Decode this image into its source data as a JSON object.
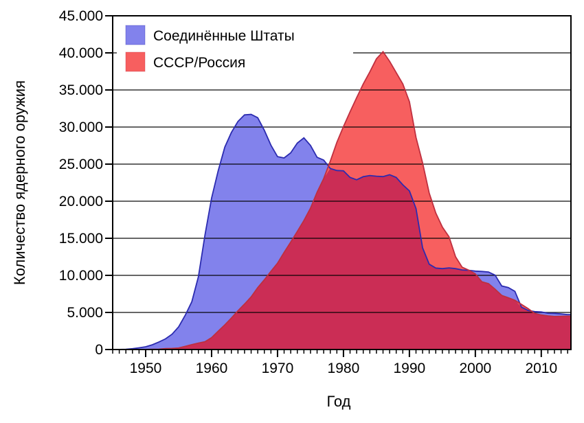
{
  "chart_data": {
    "type": "area",
    "title": "",
    "xlabel": "Год",
    "ylabel": "Количество ядерного оружия",
    "xlim": [
      1945,
      2014.5
    ],
    "ylim": [
      0,
      45000
    ],
    "grid": "horizontal",
    "legend_position": "top-left",
    "background_color": "#ffffff",
    "axis_color": "#000000",
    "gridline_color": "#000000",
    "overlap_fill": "#cb2d55",
    "x": [
      1945,
      1946,
      1947,
      1948,
      1949,
      1950,
      1951,
      1952,
      1953,
      1954,
      1955,
      1956,
      1957,
      1958,
      1959,
      1960,
      1961,
      1962,
      1963,
      1964,
      1965,
      1966,
      1967,
      1968,
      1969,
      1970,
      1971,
      1972,
      1973,
      1974,
      1975,
      1976,
      1977,
      1978,
      1979,
      1980,
      1981,
      1982,
      1983,
      1984,
      1985,
      1986,
      1987,
      1988,
      1989,
      1990,
      1991,
      1992,
      1993,
      1994,
      1995,
      1996,
      1997,
      1998,
      1999,
      2000,
      2001,
      2002,
      2003,
      2004,
      2005,
      2006,
      2007,
      2008,
      2009,
      2010,
      2011,
      2012,
      2013,
      2014
    ],
    "series": [
      {
        "name": "Соединённые Штаты",
        "fill": "#8282ec",
        "line": "#2b2bb0",
        "values": [
          6,
          11,
          32,
          110,
          235,
          369,
          640,
          1005,
          1436,
          2063,
          3057,
          4618,
          6444,
          9822,
          15468,
          20434,
          24111,
          27297,
          29249,
          30751,
          31642,
          31700,
          31255,
          29561,
          27552,
          26008,
          25830,
          26516,
          27835,
          28537,
          27519,
          25914,
          25542,
          24418,
          24138,
          24104,
          23208,
          22886,
          23305,
          23459,
          23368,
          23317,
          23575,
          23205,
          22217,
          21392,
          19008,
          13708,
          11511,
          10979,
          10904,
          11011,
          10903,
          10732,
          10685,
          10577,
          10526,
          10457,
          10027,
          8570,
          8360,
          7853,
          5709,
          5273,
          5113,
          5066,
          4897,
          4881,
          4804,
          4717
        ]
      },
      {
        "name": "СССР/Россия",
        "fill": "#f75f5f",
        "line": "#bf2f3f",
        "values": [
          0,
          0,
          0,
          0,
          1,
          5,
          25,
          50,
          120,
          150,
          200,
          426,
          660,
          869,
          1060,
          1605,
          2471,
          3322,
          4238,
          5221,
          6129,
          7089,
          8339,
          9399,
          10538,
          11643,
          13092,
          14478,
          15915,
          17385,
          19055,
          21205,
          23044,
          25393,
          27935,
          30062,
          32049,
          33952,
          35804,
          37431,
          39197,
          40159,
          38859,
          37333,
          35805,
          33417,
          28595,
          25155,
          21101,
          18399,
          16500,
          15200,
          12500,
          11100,
          10700,
          10200,
          9126,
          8875,
          8128,
          7297,
          6986,
          6643,
          6079,
          5518,
          4864,
          4653,
          4541,
          4454,
          4480,
          4500
        ]
      }
    ],
    "xticks_major": [
      1950,
      1960,
      1970,
      1980,
      1990,
      2000,
      2010
    ],
    "xticks_minor_step_years": 1,
    "yticks": [
      {
        "value": 0,
        "label": "0"
      },
      {
        "value": 5000,
        "label": "5.000"
      },
      {
        "value": 10000,
        "label": "10.000"
      },
      {
        "value": 15000,
        "label": "15.000"
      },
      {
        "value": 20000,
        "label": "20.000"
      },
      {
        "value": 25000,
        "label": "25.000"
      },
      {
        "value": 30000,
        "label": "30.000"
      },
      {
        "value": 35000,
        "label": "35.000"
      },
      {
        "value": 40000,
        "label": "40.000"
      },
      {
        "value": 45000,
        "label": "45.000"
      }
    ]
  }
}
